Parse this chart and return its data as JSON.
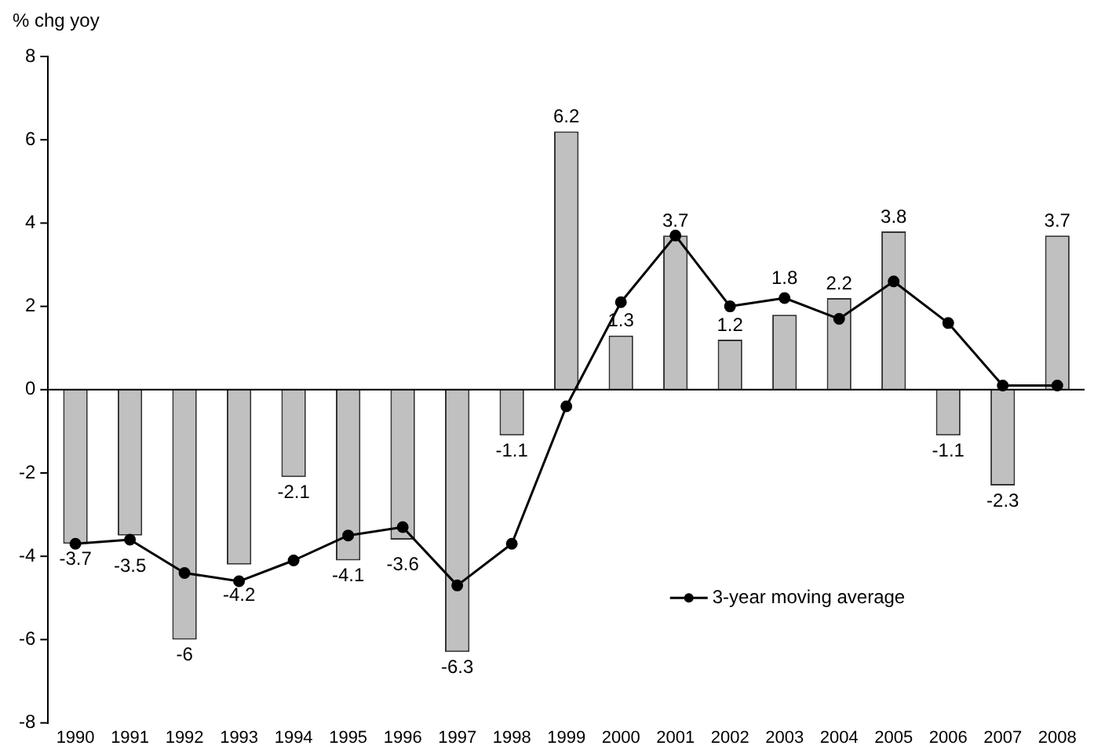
{
  "chart_data": {
    "type": "bar",
    "ylabel": "% chg yoy",
    "categories": [
      "1990",
      "1991",
      "1992",
      "1993",
      "1994",
      "1995",
      "1996",
      "1997",
      "1998",
      "1999",
      "2000",
      "2001",
      "2002",
      "2003",
      "2004",
      "2005",
      "2006",
      "2007",
      "2008"
    ],
    "series": [
      {
        "color": "#c0c0c0",
        "values": [
          -3.7,
          -3.5,
          -6,
          -4.2,
          -2.1,
          -4.1,
          -3.6,
          -6.3,
          -1.1,
          6.2,
          1.3,
          3.7,
          1.2,
          1.8,
          2.2,
          3.8,
          -1.1,
          -2.3,
          3.7
        ],
        "value_labels": [
          "-3.7",
          "-3.5",
          "-6",
          "-4.2",
          "-2.1",
          "-4.1",
          "-3.6",
          "-6.3",
          "-1.1",
          "6.2",
          "1.3",
          "3.7",
          "1.2",
          "1.8",
          "2.2",
          "3.8",
          "-1.1",
          "-2.3",
          "3.7"
        ]
      },
      {
        "type": "line",
        "name": "3-year moving average",
        "color": "#000000",
        "marker": "circle",
        "values": [
          -3.7,
          -3.6,
          -4.4,
          -4.6,
          -4.1,
          -3.5,
          -3.3,
          -4.7,
          -3.7,
          -0.4,
          2.1,
          3.7,
          2.0,
          2.2,
          1.7,
          2.6,
          1.6,
          0.1,
          0.1
        ]
      }
    ],
    "ylim": [
      -8,
      8
    ],
    "yticks": [
      -8,
      -6,
      -4,
      -2,
      0,
      2,
      4,
      6,
      8
    ],
    "legend": "bottom right"
  }
}
